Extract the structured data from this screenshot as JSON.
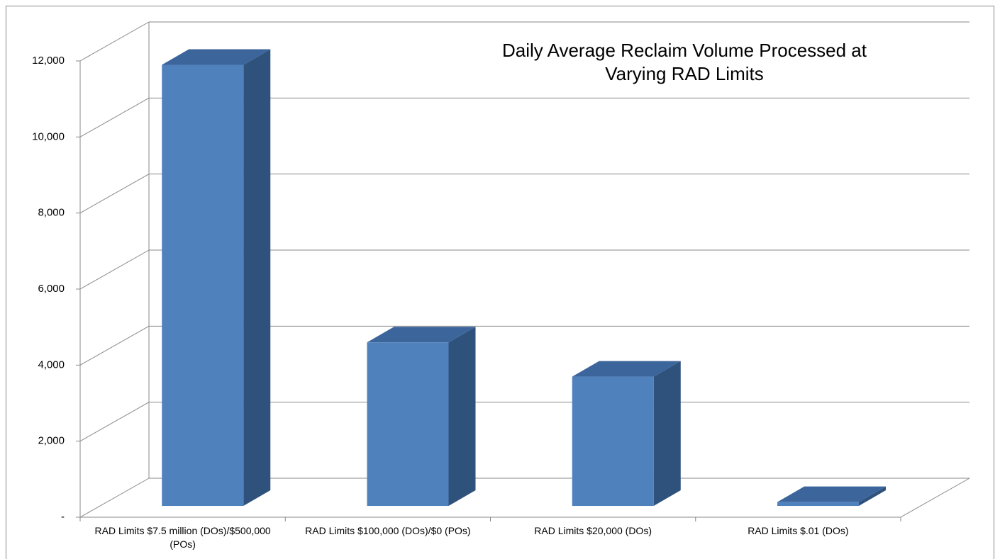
{
  "chart_data": {
    "type": "bar3d",
    "title": "Daily Average Reclaim Volume Processed at Varying RAD Limits",
    "categories": [
      "RAD Limits $7.5 million (DOs)/$500,000 (POs)",
      "RAD Limits $100,000 (DOs)/$0 (POs)",
      "RAD Limits $20,000 (DOs)",
      "RAD Limits $.01 (DOs)"
    ],
    "values": [
      11600,
      4300,
      3400,
      100
    ],
    "color": "#4f81bd",
    "ylim": [
      0,
      12000
    ],
    "yticks": [
      {
        "value": 0,
        "label": "-"
      },
      {
        "value": 2000,
        "label": "2,000"
      },
      {
        "value": 4000,
        "label": "4,000"
      },
      {
        "value": 6000,
        "label": "6,000"
      },
      {
        "value": 8000,
        "label": "8,000"
      },
      {
        "value": 10000,
        "label": "10,000"
      },
      {
        "value": 12000,
        "label": "12,000"
      }
    ],
    "grid": true
  }
}
